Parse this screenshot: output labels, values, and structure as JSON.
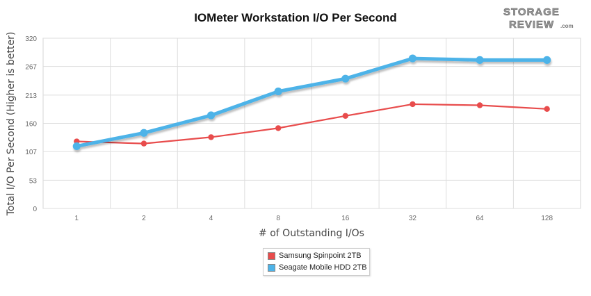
{
  "header": {
    "title": "IOMeter Workstation I/O Per Second",
    "logo_line1": "STORAGE",
    "logo_line2": "REVIEW",
    "logo_suffix": ".com"
  },
  "colors": {
    "samsung": "#e84c4c",
    "seagate": "#4db3e8",
    "grid": "#dddddd"
  },
  "chart_data": {
    "type": "line",
    "title": "IOMeter Workstation I/O Per Second",
    "xlabel": "# of Outstanding I/Os",
    "ylabel": "Total I/O Per Second (Higher is better)",
    "categories": [
      "1",
      "2",
      "4",
      "8",
      "16",
      "32",
      "64",
      "128"
    ],
    "yticks": [
      "0",
      "53",
      "107",
      "160",
      "213",
      "267",
      "320"
    ],
    "ylim": [
      0,
      320
    ],
    "grid": true,
    "legend_position": "bottom-center",
    "series": [
      {
        "name": "Samsung Spinpoint 2TB",
        "color": "#e84c4c",
        "values": [
          126,
          122,
          134,
          151,
          174,
          196,
          194,
          187
        ]
      },
      {
        "name": "Seagate Mobile HDD 2TB",
        "color": "#4db3e8",
        "values": [
          117,
          142,
          175,
          220,
          244,
          282,
          279,
          279
        ]
      }
    ]
  }
}
